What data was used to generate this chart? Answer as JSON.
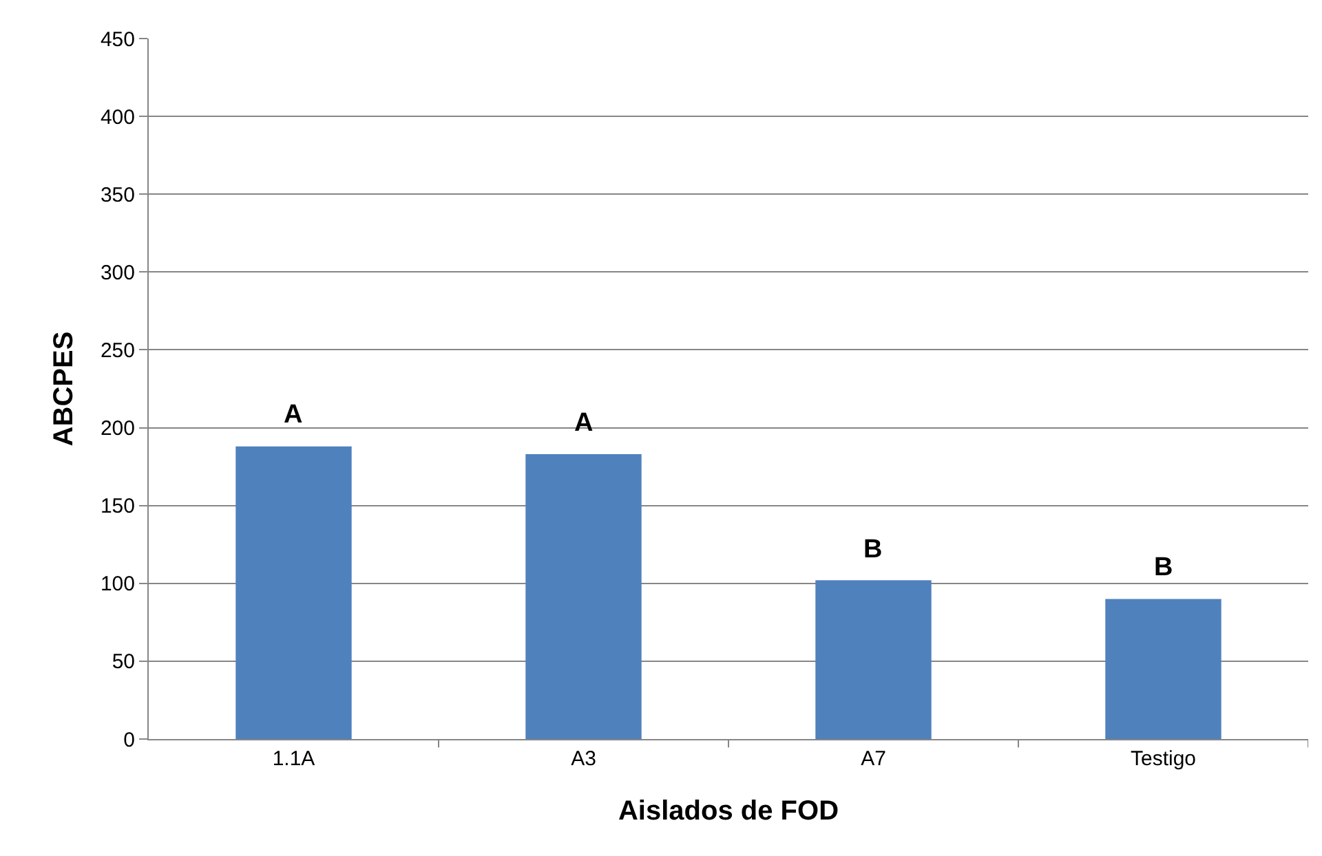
{
  "chart_data": {
    "type": "bar",
    "xlabel": "Aislados de FOD",
    "ylabel": "ABCPES",
    "categories": [
      "1.1A",
      "A3",
      "A7",
      "Testigo"
    ],
    "values": [
      188,
      183,
      102,
      90
    ],
    "color": "#4f81bd",
    "ylim": [
      0,
      450
    ],
    "yticks": [
      0,
      50,
      100,
      150,
      200,
      250,
      300,
      350,
      400,
      450
    ],
    "grid": "y",
    "annotations": [
      {
        "text": "A",
        "x": "1.1A",
        "y": 188
      },
      {
        "text": "A",
        "x": "A3",
        "y": 183
      },
      {
        "text": "B",
        "x": "A7",
        "y": 102
      },
      {
        "text": "B",
        "x": "Testigo",
        "y": 90
      }
    ]
  }
}
